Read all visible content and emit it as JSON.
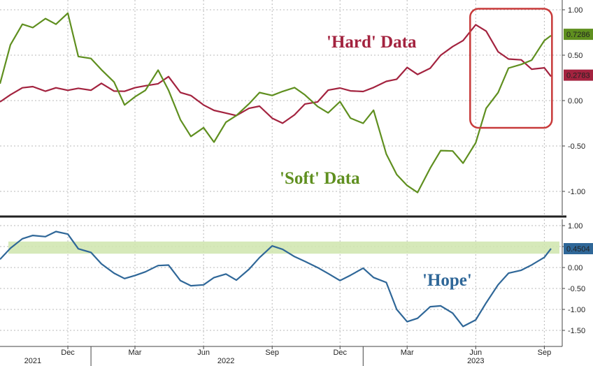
{
  "colors": {
    "hard": "#a3233f",
    "soft": "#5f8f1f",
    "hope": "#2f6798",
    "hope_band": "#cfe5ad",
    "box": "#c83a3a",
    "grid": "#b8b8b8",
    "divider": "#222222"
  },
  "chart_data": [
    {
      "type": "line",
      "x_axis": "date",
      "y_axis_side": "right",
      "ylim": [
        -1.1,
        1.0
      ],
      "yticks": [
        "1.00",
        "0.50",
        "0.00",
        "-0.50",
        "-1.00"
      ],
      "grid": true,
      "series": [
        {
          "name": "'Hard' Data",
          "color": "#a3233f",
          "last_value_label": "0.2783",
          "points": [
            [
              "2021-09-01",
              0.0
            ],
            [
              "2021-09-15",
              0.05
            ],
            [
              "2021-10-01",
              0.15
            ],
            [
              "2021-10-15",
              0.15
            ],
            [
              "2021-11-01",
              0.1
            ],
            [
              "2021-11-15",
              0.15
            ],
            [
              "2021-12-01",
              0.1
            ],
            [
              "2021-12-15",
              0.15
            ],
            [
              "2022-01-01",
              0.1
            ],
            [
              "2022-01-15",
              0.2
            ],
            [
              "2022-02-01",
              0.1
            ],
            [
              "2022-02-15",
              0.1
            ],
            [
              "2022-03-01",
              0.15
            ],
            [
              "2022-03-15",
              0.15
            ],
            [
              "2022-04-01",
              0.2
            ],
            [
              "2022-04-15",
              0.25
            ],
            [
              "2022-05-01",
              0.1
            ],
            [
              "2022-05-15",
              0.05
            ],
            [
              "2022-06-01",
              -0.05
            ],
            [
              "2022-06-15",
              -0.1
            ],
            [
              "2022-07-01",
              -0.15
            ],
            [
              "2022-07-15",
              -0.15
            ],
            [
              "2022-08-01",
              -0.1
            ],
            [
              "2022-08-15",
              -0.05
            ],
            [
              "2022-09-01",
              -0.2
            ],
            [
              "2022-09-15",
              -0.25
            ],
            [
              "2022-10-01",
              -0.15
            ],
            [
              "2022-10-15",
              -0.05
            ],
            [
              "2022-11-01",
              0.0
            ],
            [
              "2022-11-15",
              0.1
            ],
            [
              "2022-12-01",
              0.15
            ],
            [
              "2022-12-15",
              0.1
            ],
            [
              "2023-01-01",
              0.1
            ],
            [
              "2023-01-15",
              0.15
            ],
            [
              "2023-02-01",
              0.2
            ],
            [
              "2023-02-15",
              0.25
            ],
            [
              "2023-03-01",
              0.35
            ],
            [
              "2023-03-15",
              0.3
            ],
            [
              "2023-04-01",
              0.35
            ],
            [
              "2023-04-15",
              0.5
            ],
            [
              "2023-05-01",
              0.6
            ],
            [
              "2023-05-15",
              0.65
            ],
            [
              "2023-06-01",
              0.85
            ],
            [
              "2023-06-15",
              0.75
            ],
            [
              "2023-07-01",
              0.55
            ],
            [
              "2023-07-15",
              0.45
            ],
            [
              "2023-08-01",
              0.45
            ],
            [
              "2023-08-15",
              0.35
            ],
            [
              "2023-09-01",
              0.35
            ],
            [
              "2023-09-10",
              0.28
            ]
          ]
        },
        {
          "name": "'Soft' Data",
          "color": "#5f8f1f",
          "last_value_label": "0.7286",
          "points": [
            [
              "2021-09-01",
              0.2
            ],
            [
              "2021-09-15",
              0.6
            ],
            [
              "2021-10-01",
              0.85
            ],
            [
              "2021-10-15",
              0.8
            ],
            [
              "2021-11-01",
              0.9
            ],
            [
              "2021-11-15",
              0.85
            ],
            [
              "2021-12-01",
              0.95
            ],
            [
              "2021-12-15",
              0.5
            ],
            [
              "2022-01-01",
              0.45
            ],
            [
              "2022-01-15",
              0.35
            ],
            [
              "2022-02-01",
              0.2
            ],
            [
              "2022-02-15",
              -0.05
            ],
            [
              "2022-03-01",
              0.05
            ],
            [
              "2022-03-15",
              0.1
            ],
            [
              "2022-04-01",
              0.35
            ],
            [
              "2022-04-15",
              0.1
            ],
            [
              "2022-05-01",
              -0.2
            ],
            [
              "2022-05-15",
              -0.4
            ],
            [
              "2022-06-01",
              -0.3
            ],
            [
              "2022-06-15",
              -0.45
            ],
            [
              "2022-07-01",
              -0.25
            ],
            [
              "2022-07-15",
              -0.15
            ],
            [
              "2022-08-01",
              -0.05
            ],
            [
              "2022-08-15",
              0.1
            ],
            [
              "2022-09-01",
              0.05
            ],
            [
              "2022-09-15",
              0.1
            ],
            [
              "2022-10-01",
              0.15
            ],
            [
              "2022-10-15",
              0.05
            ],
            [
              "2022-11-01",
              -0.05
            ],
            [
              "2022-11-15",
              -0.15
            ],
            [
              "2022-12-01",
              0.0
            ],
            [
              "2022-12-15",
              -0.2
            ],
            [
              "2023-01-01",
              -0.25
            ],
            [
              "2023-01-15",
              -0.1
            ],
            [
              "2023-02-01",
              -0.6
            ],
            [
              "2023-02-15",
              -0.8
            ],
            [
              "2023-03-01",
              -0.95
            ],
            [
              "2023-03-15",
              -1.0
            ],
            [
              "2023-04-01",
              -0.75
            ],
            [
              "2023-04-15",
              -0.55
            ],
            [
              "2023-05-01",
              -0.55
            ],
            [
              "2023-05-15",
              -0.7
            ],
            [
              "2023-06-01",
              -0.45
            ],
            [
              "2023-06-15",
              -0.1
            ],
            [
              "2023-07-01",
              0.1
            ],
            [
              "2023-07-15",
              0.35
            ],
            [
              "2023-08-01",
              0.4
            ],
            [
              "2023-08-15",
              0.45
            ],
            [
              "2023-09-01",
              0.65
            ],
            [
              "2023-09-10",
              0.73
            ]
          ]
        }
      ],
      "annotations": [
        "'Hard' Data",
        "'Soft' Data"
      ],
      "highlight_box": {
        "from": "2023-06-01",
        "to": "2023-09-15",
        "y_from": -0.3,
        "y_to": 0.95
      }
    },
    {
      "type": "line",
      "x_axis": "date",
      "y_axis_side": "right",
      "ylim": [
        -1.6,
        1.1
      ],
      "yticks": [
        "1.00",
        "0.50",
        "0.00",
        "-0.50",
        "-1.00",
        "-1.50"
      ],
      "grid": true,
      "series": [
        {
          "name": "'Hope'",
          "color": "#2f6798",
          "last_value_label": "0.4504",
          "points": [
            [
              "2021-09-01",
              0.2
            ],
            [
              "2021-09-15",
              0.45
            ],
            [
              "2021-10-01",
              0.7
            ],
            [
              "2021-10-15",
              0.75
            ],
            [
              "2021-11-01",
              0.75
            ],
            [
              "2021-11-15",
              0.85
            ],
            [
              "2021-12-01",
              0.8
            ],
            [
              "2021-12-15",
              0.45
            ],
            [
              "2022-01-01",
              0.35
            ],
            [
              "2022-01-15",
              0.1
            ],
            [
              "2022-02-01",
              -0.15
            ],
            [
              "2022-02-15",
              -0.25
            ],
            [
              "2022-03-01",
              -0.2
            ],
            [
              "2022-03-15",
              -0.1
            ],
            [
              "2022-04-01",
              0.05
            ],
            [
              "2022-04-15",
              0.05
            ],
            [
              "2022-05-01",
              -0.3
            ],
            [
              "2022-05-15",
              -0.45
            ],
            [
              "2022-06-01",
              -0.4
            ],
            [
              "2022-06-15",
              -0.25
            ],
            [
              "2022-07-01",
              -0.15
            ],
            [
              "2022-07-15",
              -0.3
            ],
            [
              "2022-08-01",
              -0.05
            ],
            [
              "2022-08-15",
              0.25
            ],
            [
              "2022-09-01",
              0.5
            ],
            [
              "2022-09-15",
              0.45
            ],
            [
              "2022-10-01",
              0.25
            ],
            [
              "2022-10-15",
              0.15
            ],
            [
              "2022-11-01",
              0.0
            ],
            [
              "2022-11-15",
              -0.15
            ],
            [
              "2022-12-01",
              -0.3
            ],
            [
              "2022-12-15",
              -0.2
            ],
            [
              "2023-01-01",
              0.0
            ],
            [
              "2023-01-15",
              -0.25
            ],
            [
              "2023-02-01",
              -0.35
            ],
            [
              "2023-02-15",
              -1.0
            ],
            [
              "2023-03-01",
              -1.3
            ],
            [
              "2023-03-15",
              -1.2
            ],
            [
              "2023-04-01",
              -0.95
            ],
            [
              "2023-04-15",
              -0.9
            ],
            [
              "2023-05-01",
              -1.1
            ],
            [
              "2023-05-15",
              -1.4
            ],
            [
              "2023-06-01",
              -1.25
            ],
            [
              "2023-06-15",
              -0.85
            ],
            [
              "2023-07-01",
              -0.4
            ],
            [
              "2023-07-15",
              -0.15
            ],
            [
              "2023-08-01",
              -0.05
            ],
            [
              "2023-08-15",
              0.05
            ],
            [
              "2023-09-01",
              0.25
            ],
            [
              "2023-09-10",
              0.45
            ]
          ]
        }
      ],
      "annotations": [
        "'Hope'"
      ],
      "highlight_band": {
        "y_from": 0.33,
        "y_to": 0.62
      }
    }
  ],
  "x_axis": {
    "month_ticks": [
      {
        "date": "2021-12-01",
        "label": "Dec"
      },
      {
        "date": "2022-03-01",
        "label": "Mar"
      },
      {
        "date": "2022-06-01",
        "label": "Jun"
      },
      {
        "date": "2022-09-01",
        "label": "Sep"
      },
      {
        "date": "2022-12-01",
        "label": "Dec"
      },
      {
        "date": "2023-03-01",
        "label": "Mar"
      },
      {
        "date": "2023-06-01",
        "label": "Jun"
      },
      {
        "date": "2023-09-01",
        "label": "Sep"
      }
    ],
    "year_labels": [
      {
        "date": "2021-10-15",
        "label": "2021"
      },
      {
        "date": "2022-07-01",
        "label": "2022"
      },
      {
        "date": "2023-06-01",
        "label": "2023"
      }
    ],
    "year_separators": [
      "2022-01-01",
      "2023-01-01"
    ]
  }
}
